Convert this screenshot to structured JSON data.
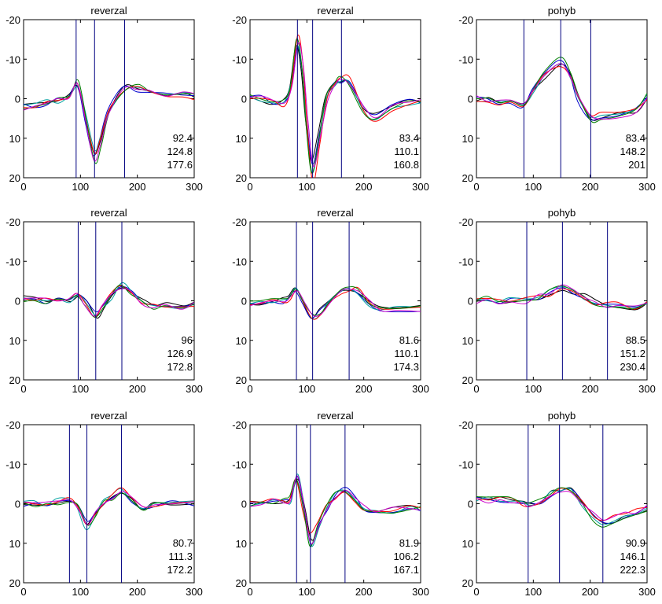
{
  "figure": {
    "colors": {
      "axis": "#000000",
      "marker": "#000080",
      "traces": [
        "#000000",
        "#0000cc",
        "#00a0a0",
        "#ff0000",
        "#008000",
        "#cc00cc"
      ]
    }
  },
  "chart_data": [
    {
      "type": "line",
      "title": "reverzal",
      "xlim": [
        0,
        300
      ],
      "ylim": [
        -20,
        20
      ],
      "y_reversed": true,
      "xticks": [
        "0",
        "100",
        "200",
        "300"
      ],
      "yticks": [
        "-20",
        "-10",
        "0",
        "10",
        "20"
      ],
      "markers": [
        92.4,
        124.8,
        177.6
      ],
      "annotations": [
        "92.4",
        "124.8",
        "177.6"
      ],
      "x": [
        0,
        20,
        40,
        60,
        80,
        92,
        100,
        110,
        124,
        135,
        150,
        177,
        200,
        220,
        250,
        280,
        300
      ],
      "series": [
        {
          "values": [
            2,
            1.5,
            1,
            0.5,
            -0.5,
            -4,
            -1,
            6,
            14,
            10,
            3,
            -2.5,
            -2.5,
            -1.5,
            -1,
            -1,
            -0.5
          ]
        }
      ]
    },
    {
      "type": "line",
      "title": "reverzal",
      "xlim": [
        0,
        300
      ],
      "ylim": [
        -20,
        20
      ],
      "y_reversed": true,
      "xticks": [
        "0",
        "100",
        "200",
        "300"
      ],
      "yticks": [
        "-20",
        "-10",
        "0",
        "10",
        "20"
      ],
      "markers": [
        83.4,
        110.1,
        160.8
      ],
      "annotations": [
        "83.4",
        "110.1",
        "160.8"
      ],
      "x": [
        0,
        20,
        40,
        60,
        72,
        83,
        92,
        100,
        110,
        122,
        135,
        150,
        160,
        175,
        200,
        220,
        250,
        280,
        300
      ],
      "series": [
        {
          "values": [
            -0.5,
            0,
            1,
            1,
            -3,
            -14,
            -8,
            6,
            18,
            10,
            0,
            -4,
            -5,
            -4,
            3,
            5,
            2,
            1,
            1
          ]
        }
      ]
    },
    {
      "type": "line",
      "title": "pohyb",
      "xlim": [
        0,
        300
      ],
      "ylim": [
        -20,
        20
      ],
      "y_reversed": true,
      "xticks": [
        "0",
        "100",
        "200",
        "300"
      ],
      "yticks": [
        "-20",
        "-10",
        "0",
        "10",
        "20"
      ],
      "markers": [
        83.4,
        148.2,
        201
      ],
      "annotations": [
        "83.4",
        "148.2",
        "201"
      ],
      "x": [
        0,
        20,
        40,
        60,
        83,
        100,
        120,
        148,
        165,
        180,
        201,
        220,
        250,
        280,
        300
      ],
      "series": [
        {
          "values": [
            0,
            0.5,
            1,
            1,
            1.5,
            -2,
            -6,
            -9.5,
            -6,
            0,
            5,
            4.5,
            4,
            3,
            -0.5
          ]
        }
      ]
    },
    {
      "type": "line",
      "title": "reverzal",
      "xlim": [
        0,
        300
      ],
      "ylim": [
        -20,
        20
      ],
      "y_reversed": true,
      "xticks": [
        "0",
        "100",
        "200",
        "300"
      ],
      "yticks": [
        "-20",
        "-10",
        "0",
        "10",
        "20"
      ],
      "markers": [
        96,
        126.9,
        172.8
      ],
      "annotations": [
        "96",
        "126.9",
        "172.8"
      ],
      "x": [
        0,
        20,
        40,
        60,
        80,
        96,
        110,
        127,
        140,
        155,
        172,
        190,
        210,
        230,
        250,
        280,
        300
      ],
      "series": [
        {
          "values": [
            -0.5,
            -0.5,
            0,
            0,
            0,
            -1,
            0.5,
            3.5,
            1.5,
            -1,
            -3.5,
            -2,
            0.5,
            1.5,
            1,
            1.5,
            1
          ]
        }
      ]
    },
    {
      "type": "line",
      "title": "reverzal",
      "xlim": [
        0,
        300
      ],
      "ylim": [
        -20,
        20
      ],
      "y_reversed": true,
      "xticks": [
        "0",
        "100",
        "200",
        "300"
      ],
      "yticks": [
        "-20",
        "-10",
        "0",
        "10",
        "20"
      ],
      "markers": [
        81.6,
        110.1,
        174.3
      ],
      "annotations": [
        "81.6",
        "110.1",
        "174.3"
      ],
      "x": [
        0,
        20,
        40,
        60,
        70,
        82,
        95,
        110,
        125,
        140,
        160,
        174,
        190,
        210,
        230,
        260,
        300
      ],
      "series": [
        {
          "values": [
            0.5,
            0.5,
            0,
            0,
            -0.5,
            -3,
            0.5,
            4,
            3,
            1,
            -2,
            -3,
            -2.5,
            0.5,
            2,
            2,
            2
          ]
        }
      ]
    },
    {
      "type": "line",
      "title": "pohyb",
      "xlim": [
        0,
        300
      ],
      "ylim": [
        -20,
        20
      ],
      "y_reversed": true,
      "xticks": [
        "0",
        "100",
        "200",
        "300"
      ],
      "yticks": [
        "-20",
        "-10",
        "0",
        "10",
        "20"
      ],
      "markers": [
        88.5,
        151.2,
        230.4
      ],
      "annotations": [
        "88.5",
        "151.2",
        "230.4"
      ],
      "x": [
        0,
        20,
        40,
        60,
        88,
        110,
        130,
        151,
        170,
        190,
        210,
        230,
        250,
        280,
        300
      ],
      "series": [
        {
          "values": [
            0,
            -0.5,
            0,
            0,
            0,
            -1,
            -2,
            -3,
            -2.5,
            -1,
            0.5,
            1,
            1,
            1.5,
            1
          ]
        }
      ]
    },
    {
      "type": "line",
      "title": "reverzal",
      "xlim": [
        0,
        300
      ],
      "ylim": [
        -20,
        20
      ],
      "y_reversed": true,
      "xticks": [
        "0",
        "100",
        "200",
        "300"
      ],
      "yticks": [
        "-20",
        "-10",
        "0",
        "10",
        "20"
      ],
      "markers": [
        80.7,
        111.3,
        172.2
      ],
      "annotations": [
        "80.7",
        "111.3",
        "172.2"
      ],
      "x": [
        0,
        20,
        40,
        60,
        80,
        95,
        111,
        125,
        140,
        155,
        172,
        190,
        210,
        230,
        260,
        300
      ],
      "series": [
        {
          "values": [
            0,
            0,
            0,
            -0.5,
            -1,
            1,
            5,
            3,
            0,
            -1.5,
            -3,
            -1,
            1,
            0,
            0,
            0
          ]
        }
      ]
    },
    {
      "type": "line",
      "title": "reverzal",
      "xlim": [
        0,
        300
      ],
      "ylim": [
        -20,
        20
      ],
      "y_reversed": true,
      "xticks": [
        "0",
        "100",
        "200",
        "300"
      ],
      "yticks": [
        "-20",
        "-10",
        "0",
        "10",
        "20"
      ],
      "markers": [
        81.9,
        106.2,
        167.1
      ],
      "annotations": [
        "81.9",
        "106.2",
        "167.1"
      ],
      "x": [
        0,
        20,
        40,
        60,
        70,
        82,
        95,
        106,
        120,
        135,
        150,
        167,
        185,
        200,
        220,
        250,
        280,
        300
      ],
      "series": [
        {
          "values": [
            0,
            -0.5,
            -0.5,
            -0.5,
            -1,
            -6,
            2,
            9,
            5,
            1,
            -2,
            -3,
            -1,
            1,
            2,
            1.5,
            1,
            1
          ]
        }
      ]
    },
    {
      "type": "line",
      "title": "pohyb",
      "xlim": [
        0,
        300
      ],
      "ylim": [
        -20,
        20
      ],
      "y_reversed": true,
      "xticks": [
        "0",
        "100",
        "200",
        "300"
      ],
      "yticks": [
        "-20",
        "-10",
        "0",
        "10",
        "20"
      ],
      "markers": [
        90.9,
        146.1,
        222.3
      ],
      "annotations": [
        "90.9",
        "146.1",
        "222.3"
      ],
      "x": [
        0,
        20,
        40,
        60,
        80,
        91,
        110,
        130,
        146,
        165,
        185,
        205,
        222,
        240,
        260,
        280,
        300
      ],
      "series": [
        {
          "values": [
            -1,
            -1,
            -1,
            -1,
            0,
            0.5,
            -0.5,
            -2.5,
            -3.5,
            -3,
            0,
            3,
            5,
            4,
            3,
            2,
            1
          ]
        }
      ]
    }
  ]
}
